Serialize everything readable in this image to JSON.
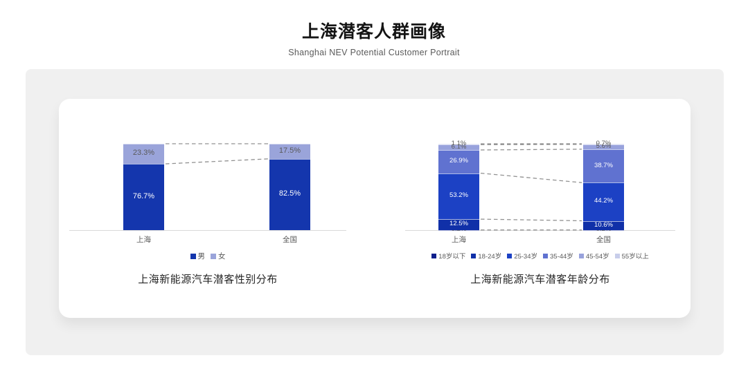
{
  "header": {
    "title": "上海潜客人群画像",
    "subtitle": "Shanghai NEV Potential Customer Portrait"
  },
  "chart_data": [
    {
      "type": "bar",
      "subtype": "stacked-percentage-bar",
      "title": "上海新能源汽车潜客性别分布",
      "categories": [
        "上海",
        "全国"
      ],
      "series": [
        {
          "name": "男",
          "values": [
            76.7,
            82.5
          ],
          "color": "#1436ad",
          "label_color": "#ffffff"
        },
        {
          "name": "女",
          "values": [
            23.3,
            17.5
          ],
          "color": "#9aa4da",
          "label_color": "#595959"
        }
      ],
      "unit": "%",
      "ylim": [
        0,
        100
      ],
      "grid": false,
      "legend_position": "bottom",
      "connectors": [
        [
          100,
          100
        ],
        [
          76.7,
          82.5
        ]
      ],
      "connector_style": "dashed-gray"
    },
    {
      "type": "bar",
      "subtype": "stacked-percentage-bar",
      "title": "上海新能源汽车潜客年龄分布",
      "categories": [
        "上海",
        "全国"
      ],
      "series": [
        {
          "name": "18岁以下",
          "values": [
            0.2,
            0.2
          ],
          "color": "#0d1f8c",
          "label_color": "#595959"
        },
        {
          "name": "18-24岁",
          "values": [
            12.5,
            10.6
          ],
          "color": "#1030a8",
          "label_color": "#ffffff"
        },
        {
          "name": "25-34岁",
          "values": [
            53.2,
            44.2
          ],
          "color": "#1c41c4",
          "label_color": "#ffffff"
        },
        {
          "name": "35-44岁",
          "values": [
            26.9,
            38.7
          ],
          "color": "#6072d0",
          "label_color": "#ffffff"
        },
        {
          "name": "45-54岁",
          "values": [
            6.1,
            5.6
          ],
          "color": "#98a2dc",
          "label_color": "#595959"
        },
        {
          "name": "55岁以上",
          "values": [
            1.1,
            0.7
          ],
          "color": "#c8cdea",
          "label_color": "#595959"
        }
      ],
      "unit": "%",
      "ylim": [
        0,
        100
      ],
      "grid": false,
      "legend_position": "bottom",
      "connectors": [
        [
          100,
          100
        ],
        [
          98.9,
          99.3
        ],
        [
          92.8,
          93.7
        ],
        [
          65.9,
          55.0
        ],
        [
          12.7,
          10.8
        ],
        [
          0.2,
          0.2
        ]
      ],
      "connector_style": "dashed-gray"
    }
  ],
  "colors": {
    "panel_bg": "#f0f0f0",
    "card_bg": "#ffffff",
    "axis_line": "#d9d9d9",
    "connector": "#909090",
    "primary_dark_blue": "#1436ad",
    "light_periwinkle": "#9aa4da"
  }
}
